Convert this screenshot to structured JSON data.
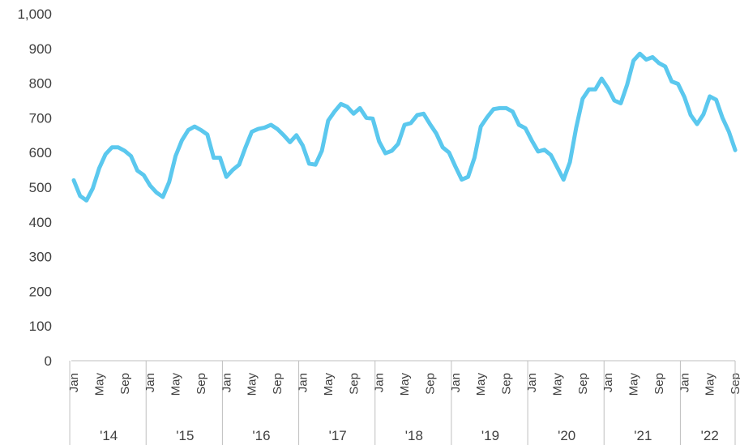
{
  "chart_data": {
    "type": "line",
    "title": "",
    "xlabel": "",
    "ylabel": "",
    "ylim": [
      0,
      1000
    ],
    "yticks": [
      "0",
      "100",
      "200",
      "300",
      "400",
      "500",
      "600",
      "700",
      "800",
      "900",
      "1,000"
    ],
    "grid": false,
    "legend": "none",
    "line_color": "#5BC8EE",
    "month_ticks": [
      "Jan",
      "May",
      "Sep"
    ],
    "years": [
      "'14",
      "'15",
      "'16",
      "'17",
      "'18",
      "'19",
      "'20",
      "'21",
      "'22"
    ],
    "x_start": "2014-01",
    "x_end": "2022-09",
    "series": [
      {
        "values": [
          520,
          475,
          462,
          497,
          555,
          595,
          615,
          615,
          605,
          590,
          548,
          535,
          505,
          485,
          472,
          515,
          590,
          635,
          665,
          675,
          665,
          652,
          585,
          585,
          530,
          550,
          565,
          615,
          660,
          668,
          672,
          680,
          668,
          650,
          630,
          650,
          620,
          568,
          565,
          605,
          692,
          718,
          740,
          732,
          712,
          728,
          700,
          698,
          632,
          598,
          605,
          625,
          680,
          685,
          708,
          712,
          682,
          655,
          615,
          600,
          560,
          522,
          530,
          585,
          675,
          702,
          725,
          728,
          728,
          718,
          680,
          670,
          635,
          603,
          608,
          593,
          558,
          522,
          572,
          672,
          755,
          782,
          782,
          813,
          785,
          750,
          742,
          795,
          865,
          885,
          868,
          875,
          858,
          848,
          805,
          798,
          760,
          708,
          682,
          710,
          762,
          752,
          700,
          660,
          607
        ]
      }
    ]
  }
}
